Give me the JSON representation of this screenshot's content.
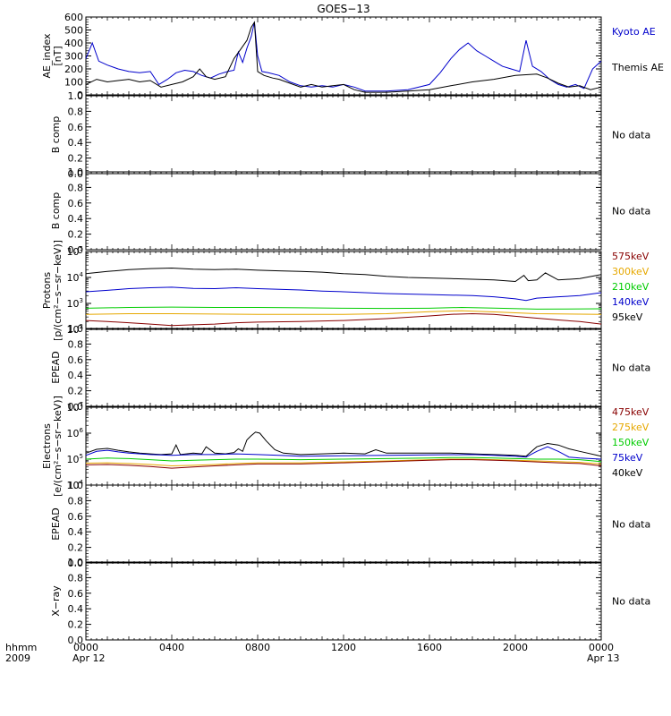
{
  "title": "GOES−13",
  "footer": {
    "left_top": "hhmm",
    "left_bottom": "2009",
    "x_ticks": [
      "0000",
      "0400",
      "0800",
      "1200",
      "1600",
      "2000",
      "0000"
    ],
    "date_left": "Apr 12",
    "date_right": "Apr 13"
  },
  "colors": {
    "black": "#000000",
    "blue": "#0000cc",
    "dark_red": "#880000",
    "orange": "#e6a800",
    "green": "#00cc00"
  },
  "chart_data": [
    {
      "type": "line",
      "ylabel": [
        "AE_index",
        "[nT]"
      ],
      "yscale": "linear",
      "ylim": [
        0,
        600
      ],
      "yticks": [
        "0",
        "100",
        "200",
        "300",
        "400",
        "500",
        "600"
      ],
      "xlim_hours": [
        0,
        24
      ],
      "series": [
        {
          "name": "Kyoto AE",
          "color": "#0000cc",
          "x": [
            0,
            0.3,
            0.6,
            1.0,
            1.5,
            2.0,
            2.5,
            3.0,
            3.4,
            3.8,
            4.2,
            4.6,
            5.0,
            5.4,
            5.8,
            6.2,
            6.6,
            6.9,
            7.1,
            7.3,
            7.5,
            7.7,
            7.85,
            8.0,
            8.2,
            8.5,
            9.0,
            9.5,
            10.0,
            10.5,
            11.0,
            11.5,
            12.0,
            12.5,
            13.0,
            14.0,
            15.0,
            16.0,
            16.5,
            17.0,
            17.4,
            17.8,
            18.2,
            18.6,
            19.0,
            19.4,
            19.8,
            20.2,
            20.5,
            20.8,
            21.2,
            21.6,
            22.0,
            22.4,
            22.8,
            23.2,
            23.6,
            24.0
          ],
          "values": [
            280,
            400,
            260,
            230,
            200,
            180,
            170,
            180,
            80,
            120,
            170,
            190,
            180,
            150,
            130,
            160,
            180,
            190,
            330,
            250,
            360,
            450,
            560,
            300,
            180,
            170,
            150,
            100,
            70,
            60,
            70,
            60,
            80,
            60,
            30,
            30,
            40,
            80,
            170,
            280,
            350,
            400,
            340,
            300,
            260,
            220,
            200,
            180,
            420,
            220,
            180,
            120,
            80,
            60,
            80,
            50,
            200,
            260
          ]
        },
        {
          "name": "Themis AE",
          "color": "#000000",
          "x": [
            0,
            0.5,
            1.0,
            1.5,
            2.0,
            2.5,
            3.0,
            3.5,
            4.0,
            4.5,
            5.0,
            5.3,
            5.6,
            6.0,
            6.5,
            6.9,
            7.2,
            7.5,
            7.7,
            7.85,
            8.0,
            8.3,
            8.7,
            9.0,
            9.5,
            10.0,
            10.5,
            11.0,
            11.5,
            12.0,
            12.5,
            13.0,
            14.0,
            15.0,
            16.0,
            17.0,
            18.0,
            19.0,
            20.0,
            21.0,
            21.5,
            22.0,
            22.5,
            23.0,
            23.5,
            24.0
          ],
          "values": [
            80,
            120,
            100,
            110,
            120,
            100,
            110,
            60,
            80,
            100,
            140,
            200,
            140,
            120,
            140,
            280,
            350,
            420,
            520,
            560,
            180,
            150,
            130,
            120,
            90,
            60,
            80,
            60,
            70,
            80,
            40,
            20,
            20,
            30,
            40,
            70,
            100,
            120,
            150,
            160,
            130,
            90,
            60,
            70,
            40,
            60
          ]
        }
      ],
      "annotations": [
        {
          "text": "Kyoto AE",
          "color": "#0000cc"
        },
        {
          "text": "Themis AE",
          "color": "#000000"
        }
      ]
    },
    {
      "type": "line",
      "ylabel": [
        "B comp"
      ],
      "yscale": "linear",
      "ylim": [
        0,
        1
      ],
      "yticks": [
        "0.0",
        "0.2",
        "0.4",
        "0.6",
        "0.8",
        "1.0"
      ],
      "series": [],
      "note": "No data"
    },
    {
      "type": "line",
      "ylabel": [
        "B comp"
      ],
      "yscale": "linear",
      "ylim": [
        0,
        1
      ],
      "yticks": [
        "0.0",
        "0.2",
        "0.4",
        "0.6",
        "0.8",
        "1.0"
      ],
      "series": [],
      "note": "No data"
    },
    {
      "type": "line",
      "ylabel": [
        "Protons",
        "[p/(cm²−s−sr−keV)]"
      ],
      "yscale": "log",
      "ylim": [
        100,
        100000
      ],
      "yticks": [
        {
          "base": "10",
          "exp": "2",
          "v": 100
        },
        {
          "base": "10",
          "exp": "3",
          "v": 1000
        },
        {
          "base": "10",
          "exp": "4",
          "v": 10000
        },
        {
          "base": "10",
          "exp": "5",
          "v": 100000
        }
      ],
      "series": [
        {
          "name": "95keV",
          "color": "#000000",
          "x": [
            0,
            1,
            2,
            3,
            4,
            5,
            6,
            7,
            8,
            9,
            10,
            11,
            12,
            13,
            14,
            15,
            16,
            17,
            18,
            19,
            20,
            20.4,
            20.6,
            21,
            21.4,
            22,
            23,
            24
          ],
          "values": [
            14000,
            17000,
            20000,
            22000,
            23000,
            21000,
            20000,
            21000,
            19000,
            18000,
            17000,
            16000,
            14000,
            13000,
            11000,
            10000,
            9500,
            9000,
            8500,
            8000,
            7000,
            12000,
            7500,
            8000,
            15000,
            8000,
            9000,
            13000
          ]
        },
        {
          "name": "140keV",
          "color": "#0000cc",
          "x": [
            0,
            1,
            2,
            3,
            4,
            5,
            6,
            7,
            8,
            9,
            10,
            11,
            12,
            14,
            16,
            18,
            19,
            20,
            20.5,
            21,
            22,
            23,
            24
          ],
          "values": [
            2800,
            3200,
            3700,
            4000,
            4200,
            3800,
            3700,
            4000,
            3700,
            3500,
            3300,
            3000,
            2800,
            2400,
            2200,
            2000,
            1800,
            1500,
            1300,
            1600,
            1800,
            2000,
            2600
          ]
        },
        {
          "name": "210keV",
          "color": "#00cc00",
          "x": [
            0,
            2,
            4,
            6,
            8,
            10,
            12,
            14,
            16,
            17.5,
            19,
            21,
            24
          ],
          "values": [
            650,
            700,
            720,
            700,
            700,
            680,
            650,
            640,
            650,
            700,
            660,
            600,
            620
          ]
        },
        {
          "name": "300keV",
          "color": "#e6a800",
          "x": [
            0,
            2,
            4,
            6,
            8,
            10,
            12,
            14,
            16,
            17.5,
            19,
            21,
            24
          ],
          "values": [
            380,
            400,
            400,
            390,
            380,
            380,
            380,
            400,
            480,
            520,
            470,
            400,
            380
          ]
        },
        {
          "name": "575keV",
          "color": "#880000",
          "x": [
            0,
            1,
            2,
            3,
            4,
            5,
            6,
            7,
            8,
            10,
            12,
            14,
            16,
            17,
            18,
            19,
            20,
            21,
            22,
            23,
            24
          ],
          "values": [
            220,
            200,
            180,
            160,
            140,
            150,
            160,
            180,
            190,
            200,
            220,
            260,
            330,
            380,
            400,
            380,
            320,
            270,
            230,
            200,
            160
          ]
        }
      ],
      "legend": [
        {
          "text": "575keV",
          "color": "#880000"
        },
        {
          "text": "300keV",
          "color": "#e6a800"
        },
        {
          "text": "210keV",
          "color": "#00cc00"
        },
        {
          "text": "140keV",
          "color": "#0000cc"
        },
        {
          "text": "95keV",
          "color": "#000000"
        }
      ]
    },
    {
      "type": "line",
      "ylabel": [
        "EPEAD"
      ],
      "yscale": "linear",
      "ylim": [
        0,
        1
      ],
      "yticks": [
        "0.0",
        "0.2",
        "0.4",
        "0.6",
        "0.8",
        "1.0"
      ],
      "series": [],
      "note": "No data"
    },
    {
      "type": "line",
      "ylabel": [
        "Electrons",
        "[e/(cm²−s−sr−keV)]"
      ],
      "yscale": "log",
      "ylim": [
        10000,
        10000000
      ],
      "yticks": [
        {
          "base": "10",
          "exp": "4",
          "v": 10000
        },
        {
          "base": "10",
          "exp": "5",
          "v": 100000
        },
        {
          "base": "10",
          "exp": "6",
          "v": 1000000
        },
        {
          "base": "10",
          "exp": "7",
          "v": 10000000
        }
      ],
      "series": [
        {
          "name": "40keV",
          "color": "#000000",
          "x": [
            0,
            0.5,
            1.0,
            1.5,
            2.0,
            2.5,
            3.0,
            3.5,
            4.0,
            4.2,
            4.4,
            5.0,
            5.4,
            5.6,
            6.0,
            6.5,
            6.9,
            7.1,
            7.3,
            7.5,
            7.7,
            7.9,
            8.1,
            8.4,
            8.8,
            9.2,
            10.0,
            11.0,
            12.0,
            13.0,
            13.5,
            14.0,
            15.0,
            16.0,
            17.0,
            18.0,
            19.0,
            20.0,
            20.5,
            21.0,
            21.5,
            22.0,
            22.5,
            23.0,
            24.0
          ],
          "values": [
            170000,
            240000,
            260000,
            220000,
            190000,
            170000,
            160000,
            150000,
            160000,
            350000,
            150000,
            170000,
            160000,
            300000,
            170000,
            160000,
            180000,
            250000,
            200000,
            550000,
            800000,
            1100000,
            1000000,
            500000,
            230000,
            170000,
            150000,
            160000,
            170000,
            160000,
            230000,
            170000,
            170000,
            170000,
            170000,
            160000,
            150000,
            140000,
            130000,
            300000,
            400000,
            350000,
            250000,
            200000,
            130000
          ]
        },
        {
          "name": "75keV",
          "color": "#0000cc",
          "x": [
            0,
            0.5,
            1.0,
            1.5,
            2.0,
            3.0,
            4.0,
            5.0,
            6.0,
            7.0,
            8.0,
            9.0,
            10.0,
            12.0,
            14.0,
            16.0,
            18.0,
            19.0,
            20.0,
            20.5,
            21.0,
            21.5,
            22.0,
            22.5,
            23.0,
            24.0
          ],
          "values": [
            140000,
            200000,
            220000,
            190000,
            170000,
            150000,
            140000,
            150000,
            150000,
            160000,
            150000,
            140000,
            130000,
            135000,
            140000,
            145000,
            150000,
            140000,
            130000,
            120000,
            200000,
            300000,
            200000,
            120000,
            110000,
            100000
          ]
        },
        {
          "name": "150keV",
          "color": "#00cc00",
          "x": [
            0,
            1,
            2,
            3,
            4,
            5,
            6,
            7,
            8,
            10,
            12,
            14,
            16,
            17,
            18,
            19,
            20,
            21,
            22,
            23,
            24
          ],
          "values": [
            100000,
            110000,
            105000,
            95000,
            85000,
            90000,
            95000,
            100000,
            100000,
            95000,
            100000,
            105000,
            110000,
            115000,
            115000,
            110000,
            105000,
            100000,
            100000,
            95000,
            80000
          ]
        },
        {
          "name": "275keV",
          "color": "#e6a800",
          "x": [
            0,
            1,
            2,
            3,
            4,
            5,
            6,
            7,
            8,
            10,
            12,
            14,
            16,
            17,
            18,
            19,
            20,
            21,
            22,
            23,
            24
          ],
          "values": [
            70000,
            72000,
            68000,
            62000,
            55000,
            58000,
            62000,
            68000,
            72000,
            72000,
            78000,
            85000,
            95000,
            100000,
            100000,
            95000,
            90000,
            85000,
            80000,
            75000,
            65000
          ]
        },
        {
          "name": "475keV",
          "color": "#880000",
          "x": [
            0,
            1,
            2,
            3,
            4,
            5,
            6,
            7,
            8,
            10,
            12,
            14,
            16,
            17,
            18,
            19,
            20,
            21,
            22,
            23,
            24
          ],
          "values": [
            60000,
            62000,
            58000,
            52000,
            45000,
            50000,
            55000,
            60000,
            65000,
            65000,
            72000,
            80000,
            90000,
            95000,
            95000,
            90000,
            85000,
            78000,
            72000,
            68000,
            55000
          ]
        }
      ],
      "legend": [
        {
          "text": "475keV",
          "color": "#880000"
        },
        {
          "text": "275keV",
          "color": "#e6a800"
        },
        {
          "text": "150keV",
          "color": "#00cc00"
        },
        {
          "text": "75keV",
          "color": "#0000cc"
        },
        {
          "text": "40keV",
          "color": "#000000"
        }
      ]
    },
    {
      "type": "line",
      "ylabel": [
        "EPEAD"
      ],
      "yscale": "linear",
      "ylim": [
        0,
        1
      ],
      "yticks": [
        "0.0",
        "0.2",
        "0.4",
        "0.6",
        "0.8",
        "1.0"
      ],
      "series": [],
      "note": "No data"
    },
    {
      "type": "line",
      "ylabel": [
        "X−ray"
      ],
      "yscale": "linear",
      "ylim": [
        0,
        1
      ],
      "yticks": [
        "0.0",
        "0.2",
        "0.4",
        "0.6",
        "0.8",
        "1.0"
      ],
      "series": [],
      "note": "No data"
    }
  ]
}
